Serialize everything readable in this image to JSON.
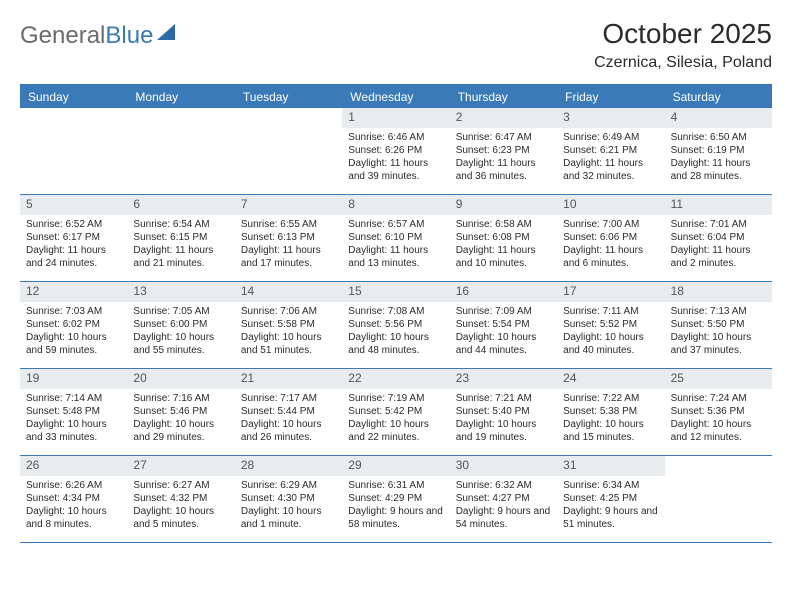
{
  "logo": {
    "word1": "General",
    "word2": "Blue"
  },
  "title": "October 2025",
  "location": "Czernica, Silesia, Poland",
  "colors": {
    "brand_blue": "#3a7ab8",
    "daynum_bg": "#e9ecef",
    "text": "#2b2b2b",
    "logo_gray": "#6b6b6b"
  },
  "dow": [
    "Sunday",
    "Monday",
    "Tuesday",
    "Wednesday",
    "Thursday",
    "Friday",
    "Saturday"
  ],
  "weeks": [
    [
      {
        "empty": true
      },
      {
        "empty": true
      },
      {
        "empty": true
      },
      {
        "day": "1",
        "sunrise": "Sunrise: 6:46 AM",
        "sunset": "Sunset: 6:26 PM",
        "daylight": "Daylight: 11 hours and 39 minutes."
      },
      {
        "day": "2",
        "sunrise": "Sunrise: 6:47 AM",
        "sunset": "Sunset: 6:23 PM",
        "daylight": "Daylight: 11 hours and 36 minutes."
      },
      {
        "day": "3",
        "sunrise": "Sunrise: 6:49 AM",
        "sunset": "Sunset: 6:21 PM",
        "daylight": "Daylight: 11 hours and 32 minutes."
      },
      {
        "day": "4",
        "sunrise": "Sunrise: 6:50 AM",
        "sunset": "Sunset: 6:19 PM",
        "daylight": "Daylight: 11 hours and 28 minutes."
      }
    ],
    [
      {
        "day": "5",
        "sunrise": "Sunrise: 6:52 AM",
        "sunset": "Sunset: 6:17 PM",
        "daylight": "Daylight: 11 hours and 24 minutes."
      },
      {
        "day": "6",
        "sunrise": "Sunrise: 6:54 AM",
        "sunset": "Sunset: 6:15 PM",
        "daylight": "Daylight: 11 hours and 21 minutes."
      },
      {
        "day": "7",
        "sunrise": "Sunrise: 6:55 AM",
        "sunset": "Sunset: 6:13 PM",
        "daylight": "Daylight: 11 hours and 17 minutes."
      },
      {
        "day": "8",
        "sunrise": "Sunrise: 6:57 AM",
        "sunset": "Sunset: 6:10 PM",
        "daylight": "Daylight: 11 hours and 13 minutes."
      },
      {
        "day": "9",
        "sunrise": "Sunrise: 6:58 AM",
        "sunset": "Sunset: 6:08 PM",
        "daylight": "Daylight: 11 hours and 10 minutes."
      },
      {
        "day": "10",
        "sunrise": "Sunrise: 7:00 AM",
        "sunset": "Sunset: 6:06 PM",
        "daylight": "Daylight: 11 hours and 6 minutes."
      },
      {
        "day": "11",
        "sunrise": "Sunrise: 7:01 AM",
        "sunset": "Sunset: 6:04 PM",
        "daylight": "Daylight: 11 hours and 2 minutes."
      }
    ],
    [
      {
        "day": "12",
        "sunrise": "Sunrise: 7:03 AM",
        "sunset": "Sunset: 6:02 PM",
        "daylight": "Daylight: 10 hours and 59 minutes."
      },
      {
        "day": "13",
        "sunrise": "Sunrise: 7:05 AM",
        "sunset": "Sunset: 6:00 PM",
        "daylight": "Daylight: 10 hours and 55 minutes."
      },
      {
        "day": "14",
        "sunrise": "Sunrise: 7:06 AM",
        "sunset": "Sunset: 5:58 PM",
        "daylight": "Daylight: 10 hours and 51 minutes."
      },
      {
        "day": "15",
        "sunrise": "Sunrise: 7:08 AM",
        "sunset": "Sunset: 5:56 PM",
        "daylight": "Daylight: 10 hours and 48 minutes."
      },
      {
        "day": "16",
        "sunrise": "Sunrise: 7:09 AM",
        "sunset": "Sunset: 5:54 PM",
        "daylight": "Daylight: 10 hours and 44 minutes."
      },
      {
        "day": "17",
        "sunrise": "Sunrise: 7:11 AM",
        "sunset": "Sunset: 5:52 PM",
        "daylight": "Daylight: 10 hours and 40 minutes."
      },
      {
        "day": "18",
        "sunrise": "Sunrise: 7:13 AM",
        "sunset": "Sunset: 5:50 PM",
        "daylight": "Daylight: 10 hours and 37 minutes."
      }
    ],
    [
      {
        "day": "19",
        "sunrise": "Sunrise: 7:14 AM",
        "sunset": "Sunset: 5:48 PM",
        "daylight": "Daylight: 10 hours and 33 minutes."
      },
      {
        "day": "20",
        "sunrise": "Sunrise: 7:16 AM",
        "sunset": "Sunset: 5:46 PM",
        "daylight": "Daylight: 10 hours and 29 minutes."
      },
      {
        "day": "21",
        "sunrise": "Sunrise: 7:17 AM",
        "sunset": "Sunset: 5:44 PM",
        "daylight": "Daylight: 10 hours and 26 minutes."
      },
      {
        "day": "22",
        "sunrise": "Sunrise: 7:19 AM",
        "sunset": "Sunset: 5:42 PM",
        "daylight": "Daylight: 10 hours and 22 minutes."
      },
      {
        "day": "23",
        "sunrise": "Sunrise: 7:21 AM",
        "sunset": "Sunset: 5:40 PM",
        "daylight": "Daylight: 10 hours and 19 minutes."
      },
      {
        "day": "24",
        "sunrise": "Sunrise: 7:22 AM",
        "sunset": "Sunset: 5:38 PM",
        "daylight": "Daylight: 10 hours and 15 minutes."
      },
      {
        "day": "25",
        "sunrise": "Sunrise: 7:24 AM",
        "sunset": "Sunset: 5:36 PM",
        "daylight": "Daylight: 10 hours and 12 minutes."
      }
    ],
    [
      {
        "day": "26",
        "sunrise": "Sunrise: 6:26 AM",
        "sunset": "Sunset: 4:34 PM",
        "daylight": "Daylight: 10 hours and 8 minutes."
      },
      {
        "day": "27",
        "sunrise": "Sunrise: 6:27 AM",
        "sunset": "Sunset: 4:32 PM",
        "daylight": "Daylight: 10 hours and 5 minutes."
      },
      {
        "day": "28",
        "sunrise": "Sunrise: 6:29 AM",
        "sunset": "Sunset: 4:30 PM",
        "daylight": "Daylight: 10 hours and 1 minute."
      },
      {
        "day": "29",
        "sunrise": "Sunrise: 6:31 AM",
        "sunset": "Sunset: 4:29 PM",
        "daylight": "Daylight: 9 hours and 58 minutes."
      },
      {
        "day": "30",
        "sunrise": "Sunrise: 6:32 AM",
        "sunset": "Sunset: 4:27 PM",
        "daylight": "Daylight: 9 hours and 54 minutes."
      },
      {
        "day": "31",
        "sunrise": "Sunrise: 6:34 AM",
        "sunset": "Sunset: 4:25 PM",
        "daylight": "Daylight: 9 hours and 51 minutes."
      },
      {
        "empty": true
      }
    ]
  ]
}
